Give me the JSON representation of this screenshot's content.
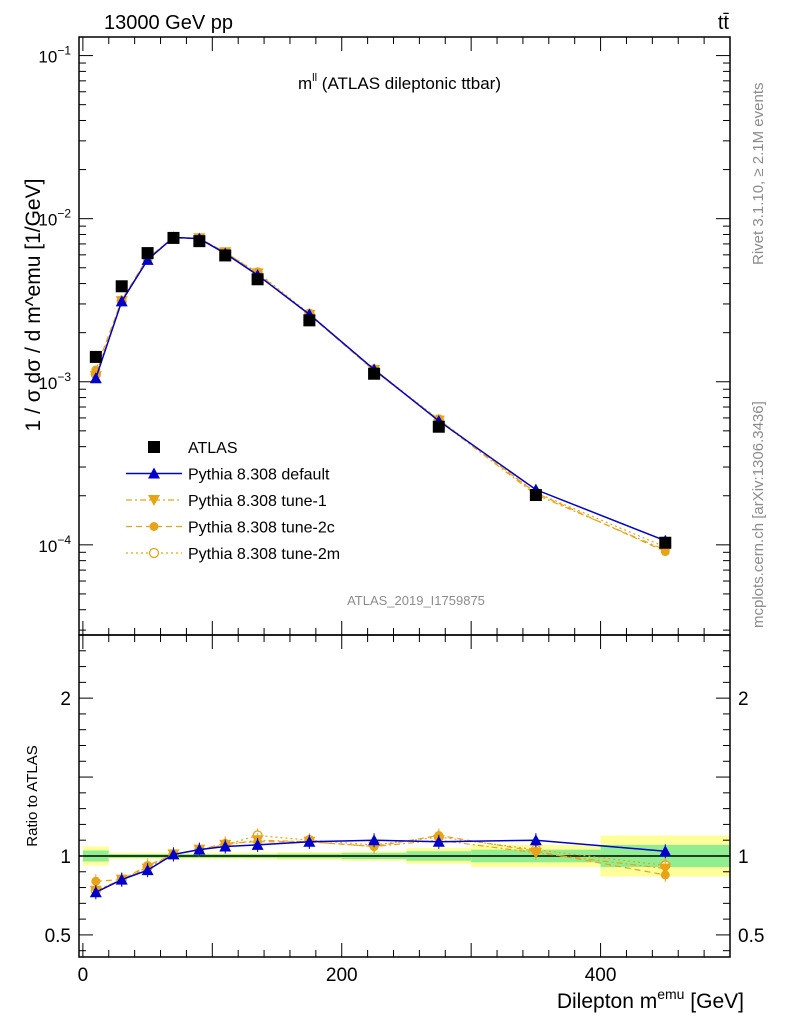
{
  "header": {
    "energy_label": "13000 GeV pp",
    "process_label": "tt̄"
  },
  "side": {
    "rivet_label": "Rivet 3.1.10, ≥ 2.1M events",
    "mcplots_label": "mcplots.cern.ch [arXiv:1306.3436]"
  },
  "colors": {
    "atlas": "#000000",
    "default": "#0000cc",
    "tune": "#e8a317",
    "band_inner": "#90ee90",
    "band_outer": "#ffff99"
  },
  "chart_data": [
    {
      "type": "line",
      "title_main": "m",
      "title_sup": "ll",
      "title_rest": " (ATLAS dileptonic ttbar)",
      "ylabel": "1 / σ  dσ / d m^emu [1/GeV]",
      "analysis_tag": "ATLAS_2019_I1759875",
      "yscale": "log",
      "xlim": [
        -3,
        500
      ],
      "ylim": [
        2.8e-05,
        0.13
      ],
      "legend": "middle-left",
      "x": [
        10,
        30,
        50,
        70,
        90,
        110,
        135,
        175,
        225,
        275,
        350,
        450
      ],
      "series": [
        {
          "name": "ATLAS",
          "style": "square",
          "values": [
            0.00142,
            0.00385,
            0.00615,
            0.00762,
            0.00728,
            0.00595,
            0.00425,
            0.00238,
            0.00112,
            0.00053,
            0.000202,
            0.000103
          ]
        },
        {
          "name": "Pythia 8.308 default",
          "style": "triangle-up",
          "values": [
            0.00105,
            0.00311,
            0.00559,
            0.00768,
            0.00754,
            0.00612,
            0.00451,
            0.00259,
            0.00119,
            0.000575,
            0.000218,
            0.000106
          ]
        },
        {
          "name": "Pythia 8.308 tune-1",
          "style": "triangle-down",
          "values": [
            0.00108,
            0.00312,
            0.00563,
            0.00766,
            0.00758,
            0.00622,
            0.00462,
            0.00257,
            0.00118,
            0.000578,
            0.000203,
            9.3e-05
          ]
        },
        {
          "name": "Pythia 8.308 tune-2c",
          "style": "circle",
          "values": [
            0.00118,
            0.00318,
            0.00575,
            0.00762,
            0.00752,
            0.00625,
            0.00455,
            0.00257,
            0.00117,
            0.000585,
            0.000208,
            9.1e-05
          ]
        },
        {
          "name": "Pythia 8.308 tune-2m",
          "style": "open-circle",
          "values": [
            0.00111,
            0.00312,
            0.00572,
            0.00768,
            0.00753,
            0.0062,
            0.00468,
            0.00261,
            0.00119,
            0.000588,
            0.000209,
            9.7e-05
          ]
        }
      ]
    },
    {
      "type": "line",
      "ylabel": "Ratio to ATLAS",
      "xlabel_main": "Dilepton m",
      "xlabel_sup": "emu",
      "xlabel_rest": " [GeV]",
      "ylim": [
        0.36,
        2.4
      ],
      "yticks": [
        0.5,
        1,
        2
      ],
      "xticks": [
        0,
        200,
        400
      ],
      "x": [
        10,
        30,
        50,
        70,
        90,
        110,
        135,
        175,
        225,
        275,
        350,
        450
      ],
      "bins": [
        [
          0,
          20
        ],
        [
          20,
          40
        ],
        [
          40,
          60
        ],
        [
          60,
          80
        ],
        [
          80,
          100
        ],
        [
          100,
          120
        ],
        [
          120,
          150
        ],
        [
          150,
          200
        ],
        [
          200,
          250
        ],
        [
          250,
          300
        ],
        [
          300,
          400
        ],
        [
          400,
          500
        ]
      ],
      "band_inner": [
        0.035,
        0.012,
        0.012,
        0.012,
        0.012,
        0.012,
        0.012,
        0.015,
        0.02,
        0.03,
        0.04,
        0.07
      ],
      "band_outer": [
        0.06,
        0.02,
        0.02,
        0.02,
        0.02,
        0.02,
        0.02,
        0.025,
        0.03,
        0.05,
        0.07,
        0.13
      ],
      "series": [
        {
          "name": "Pythia 8.308 default",
          "values": [
            0.77,
            0.85,
            0.91,
            1.01,
            1.04,
            1.06,
            1.07,
            1.09,
            1.1,
            1.09,
            1.1,
            1.03
          ]
        },
        {
          "name": "Pythia 8.308 tune-1",
          "values": [
            0.78,
            0.85,
            0.92,
            1.01,
            1.04,
            1.07,
            1.1,
            1.09,
            1.06,
            1.1,
            1.02,
            0.92
          ]
        },
        {
          "name": "Pythia 8.308 tune-2c",
          "values": [
            0.84,
            0.85,
            0.94,
            1.01,
            1.04,
            1.08,
            1.09,
            1.09,
            1.06,
            1.13,
            1.03,
            0.88
          ]
        },
        {
          "name": "Pythia 8.308 tune-2m",
          "values": [
            0.78,
            0.85,
            0.93,
            1.01,
            1.04,
            1.07,
            1.13,
            1.1,
            1.07,
            1.12,
            1.04,
            0.94
          ]
        }
      ]
    }
  ]
}
